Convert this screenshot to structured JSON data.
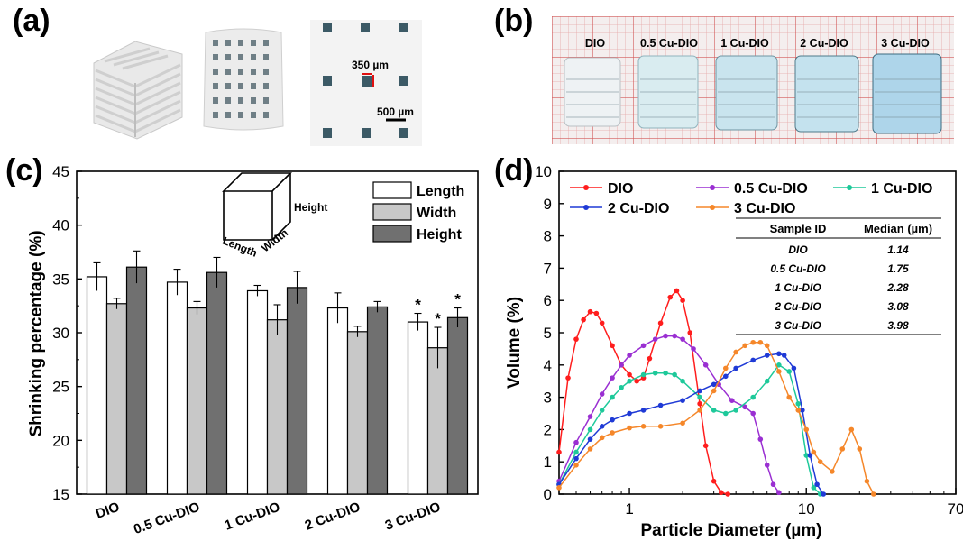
{
  "panels": {
    "a": {
      "letter": "(a)",
      "scale_labels": [
        "350 µm",
        "500 µm"
      ]
    },
    "b": {
      "letter": "(b)",
      "sample_labels": [
        "DIO",
        "0.5 Cu-DIO",
        "1 Cu-DIO",
        "2 Cu-DIO",
        "3 Cu-DIO"
      ]
    },
    "c": {
      "letter": "(c)"
    },
    "d": {
      "letter": "(d)"
    }
  },
  "chart_data": [
    {
      "id": "c",
      "type": "bar",
      "title": "",
      "xlabel": "",
      "ylabel": "Shrinking percentage (%)",
      "ylim": [
        15,
        45
      ],
      "yticks": [
        15,
        20,
        25,
        30,
        35,
        40,
        45
      ],
      "categories": [
        "DIO",
        "0.5 Cu-DIO",
        "1 Cu-DIO",
        "2 Cu-DIO",
        "3 Cu-DIO"
      ],
      "series": [
        {
          "name": "Length",
          "color": "#ffffff",
          "values": [
            35.2,
            34.7,
            33.9,
            32.3,
            31.0
          ],
          "errors": [
            1.3,
            1.2,
            0.5,
            1.4,
            0.8
          ]
        },
        {
          "name": "Width",
          "color": "#c8c8c8",
          "values": [
            32.7,
            32.3,
            31.2,
            30.1,
            28.6
          ],
          "errors": [
            0.5,
            0.6,
            1.4,
            0.5,
            1.9
          ]
        },
        {
          "name": "Height",
          "color": "#707070",
          "values": [
            36.1,
            35.6,
            34.2,
            32.4,
            31.4
          ],
          "errors": [
            1.5,
            1.4,
            1.5,
            0.5,
            0.9
          ]
        }
      ],
      "significance": {
        "category": "3 Cu-DIO",
        "marker": "*"
      },
      "legend_position": "top-right",
      "inset_labels": {
        "height": "Height",
        "length": "Length",
        "width": "Width"
      }
    },
    {
      "id": "d",
      "type": "line",
      "title": "",
      "xlabel": "Particle Diameter (µm)",
      "ylabel": "Volume (%)",
      "xscale": "log",
      "xlim": [
        0.4,
        70
      ],
      "xticks": [
        1,
        10,
        70
      ],
      "ylim": [
        0,
        10
      ],
      "yticks": [
        0,
        1,
        2,
        3,
        4,
        5,
        6,
        7,
        8,
        9,
        10
      ],
      "legend_position": "top",
      "series": [
        {
          "name": "DIO",
          "color": "#ff1d1d",
          "x": [
            0.4,
            0.45,
            0.5,
            0.55,
            0.6,
            0.65,
            0.7,
            0.8,
            0.9,
            1.0,
            1.1,
            1.2,
            1.3,
            1.5,
            1.7,
            1.85,
            2.0,
            2.2,
            2.5,
            2.7,
            3.0,
            3.3,
            3.6
          ],
          "y": [
            1.3,
            3.6,
            4.8,
            5.4,
            5.65,
            5.6,
            5.3,
            4.6,
            4.0,
            3.7,
            3.5,
            3.6,
            4.2,
            5.3,
            6.1,
            6.3,
            6.0,
            5.0,
            2.8,
            1.5,
            0.4,
            0.05,
            0
          ]
        },
        {
          "name": "0.5 Cu-DIO",
          "color": "#9a2fd2",
          "x": [
            0.4,
            0.5,
            0.6,
            0.7,
            0.8,
            0.9,
            1.0,
            1.2,
            1.4,
            1.6,
            1.8,
            2.0,
            2.3,
            2.7,
            3.2,
            3.8,
            4.5,
            5.0,
            5.5,
            6.0,
            6.5,
            7.0
          ],
          "y": [
            0.4,
            1.6,
            2.4,
            3.1,
            3.6,
            4.0,
            4.3,
            4.6,
            4.8,
            4.9,
            4.9,
            4.8,
            4.5,
            4.0,
            3.4,
            2.9,
            2.7,
            2.5,
            1.7,
            0.9,
            0.3,
            0.05
          ]
        },
        {
          "name": "1 Cu-DIO",
          "color": "#1ec99a",
          "x": [
            0.4,
            0.5,
            0.6,
            0.7,
            0.8,
            0.9,
            1.0,
            1.2,
            1.4,
            1.6,
            1.8,
            2.0,
            2.5,
            3.0,
            3.5,
            4.0,
            5.0,
            6.0,
            7.0,
            8.0,
            9.0,
            10.0,
            11.0,
            12.0
          ],
          "y": [
            0.3,
            1.3,
            2.0,
            2.6,
            3.0,
            3.3,
            3.5,
            3.7,
            3.75,
            3.75,
            3.7,
            3.5,
            3.0,
            2.6,
            2.5,
            2.6,
            3.0,
            3.5,
            4.0,
            3.8,
            2.8,
            1.2,
            0.2,
            0
          ]
        },
        {
          "name": "2 Cu-DIO",
          "color": "#1f3ad6",
          "x": [
            0.4,
            0.5,
            0.6,
            0.7,
            0.8,
            1.0,
            1.2,
            1.5,
            2.0,
            2.5,
            3.0,
            3.5,
            4.0,
            5.0,
            6.0,
            7.0,
            7.5,
            8.5,
            9.5,
            10.5,
            11.5,
            12.5
          ],
          "y": [
            0.3,
            1.1,
            1.7,
            2.1,
            2.3,
            2.5,
            2.6,
            2.75,
            2.9,
            3.2,
            3.4,
            3.65,
            3.9,
            4.15,
            4.3,
            4.35,
            4.3,
            3.9,
            2.6,
            1.2,
            0.3,
            0
          ]
        },
        {
          "name": "3 Cu-DIO",
          "color": "#f5872a",
          "x": [
            0.4,
            0.5,
            0.6,
            0.7,
            0.8,
            1.0,
            1.2,
            1.5,
            2.0,
            2.5,
            3.0,
            3.5,
            4.0,
            4.5,
            5.0,
            5.5,
            6.0,
            7.0,
            8.0,
            9.0,
            10.0,
            11.0,
            12.0,
            14.0,
            16.0,
            18.0,
            20.0,
            22.0,
            24.0
          ],
          "y": [
            0.2,
            0.9,
            1.4,
            1.75,
            1.9,
            2.05,
            2.1,
            2.1,
            2.2,
            2.6,
            3.2,
            3.9,
            4.4,
            4.6,
            4.7,
            4.7,
            4.6,
            3.8,
            3.0,
            2.6,
            2.0,
            1.3,
            1.0,
            0.7,
            1.4,
            2.0,
            1.4,
            0.4,
            0
          ]
        }
      ],
      "inset_table": {
        "headers": [
          "Sample ID",
          "Median (µm)"
        ],
        "rows": [
          [
            "DIO",
            "1.14"
          ],
          [
            "0.5 Cu-DIO",
            "1.75"
          ],
          [
            "1 Cu-DIO",
            "2.28"
          ],
          [
            "2 Cu-DIO",
            "3.08"
          ],
          [
            "3 Cu-DIO",
            "3.98"
          ]
        ]
      }
    }
  ]
}
